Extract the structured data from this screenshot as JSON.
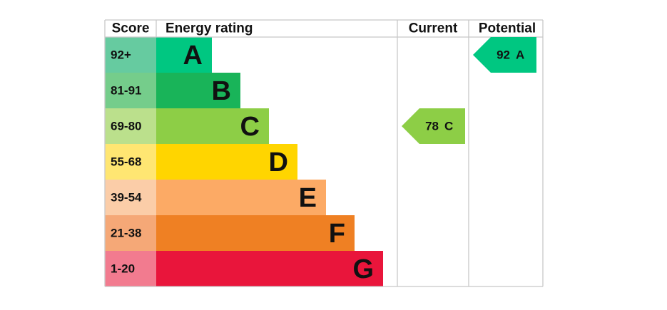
{
  "header": {
    "score": "Score",
    "rating": "Energy rating",
    "current": "Current",
    "potential": "Potential"
  },
  "bands": [
    {
      "score": "92+",
      "letter": "A",
      "color": "#00c781",
      "score_color": "#66cba0"
    },
    {
      "score": "81-91",
      "letter": "B",
      "color": "#19b459",
      "score_color": "#75cd8b"
    },
    {
      "score": "69-80",
      "letter": "C",
      "color": "#8dce46",
      "score_color": "#bbe08c"
    },
    {
      "score": "55-68",
      "letter": "D",
      "color": "#ffd500",
      "score_color": "#ffe672"
    },
    {
      "score": "39-54",
      "letter": "E",
      "color": "#fcaa65",
      "score_color": "#fbcda8"
    },
    {
      "score": "21-38",
      "letter": "F",
      "color": "#ef8023",
      "score_color": "#f5a877"
    },
    {
      "score": "1-20",
      "letter": "G",
      "color": "#e9153b",
      "score_color": "#f27b8f"
    }
  ],
  "current": {
    "score": 78,
    "letter": "C"
  },
  "potential": {
    "score": 92,
    "letter": "A"
  }
}
